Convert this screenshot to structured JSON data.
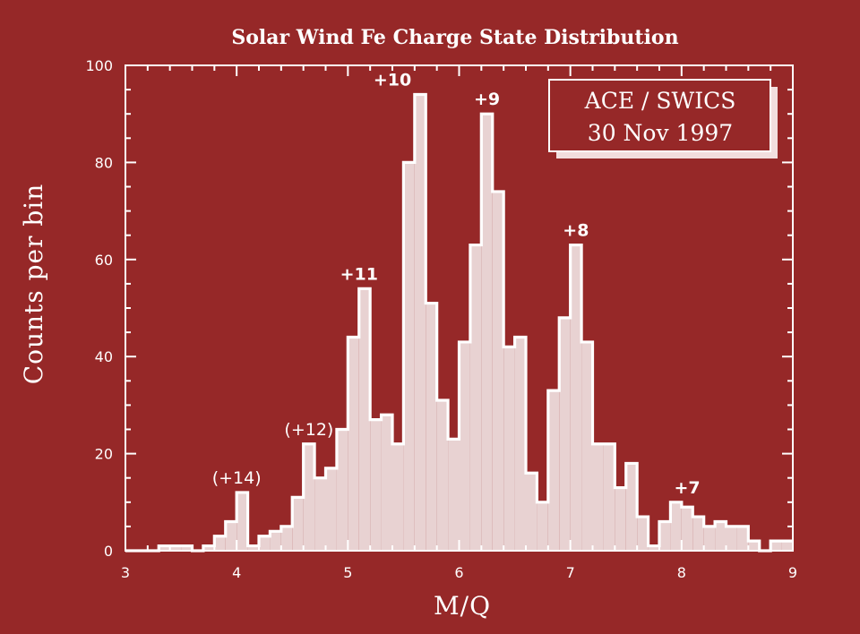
{
  "chart_data": {
    "type": "bar",
    "title": "Solar Wind Fe Charge State Distribution",
    "xlabel": "M/Q",
    "ylabel": "Counts per bin",
    "xlim": [
      3,
      9
    ],
    "ylim": [
      0,
      100
    ],
    "x_ticks": [
      3,
      4,
      5,
      6,
      7,
      8,
      9
    ],
    "y_ticks": [
      0,
      20,
      40,
      60,
      80,
      100
    ],
    "bin_width": 0.1,
    "bin_start": 3.0,
    "values": [
      0,
      0,
      0,
      1,
      1,
      1,
      0,
      1,
      3,
      6,
      12,
      1,
      3,
      4,
      5,
      11,
      22,
      15,
      17,
      25,
      44,
      54,
      27,
      28,
      22,
      80,
      94,
      51,
      31,
      23,
      43,
      63,
      90,
      74,
      42,
      44,
      16,
      10,
      33,
      48,
      63,
      43,
      22,
      22,
      13,
      18,
      7,
      1,
      6,
      10,
      9,
      7,
      5,
      6,
      5,
      5,
      2,
      0,
      2,
      2
    ],
    "annotations": [
      {
        "text": "(+14)",
        "x": 4.0,
        "y": 12
      },
      {
        "text": "(+12)",
        "x": 4.65,
        "y": 22
      },
      {
        "text": "+11",
        "x": 5.1,
        "y": 54
      },
      {
        "text": "+10",
        "x": 5.4,
        "y": 94
      },
      {
        "text": "+9",
        "x": 6.25,
        "y": 90
      },
      {
        "text": "+8",
        "x": 7.05,
        "y": 63
      },
      {
        "text": "+7",
        "x": 8.05,
        "y": 10
      }
    ],
    "legend": {
      "line1": "ACE / SWICS",
      "line2": "30 Nov 1997",
      "position": "top-right"
    }
  },
  "colors": {
    "background": "#962828",
    "fill": "#e8d2d2",
    "outline": "#ffffff"
  }
}
